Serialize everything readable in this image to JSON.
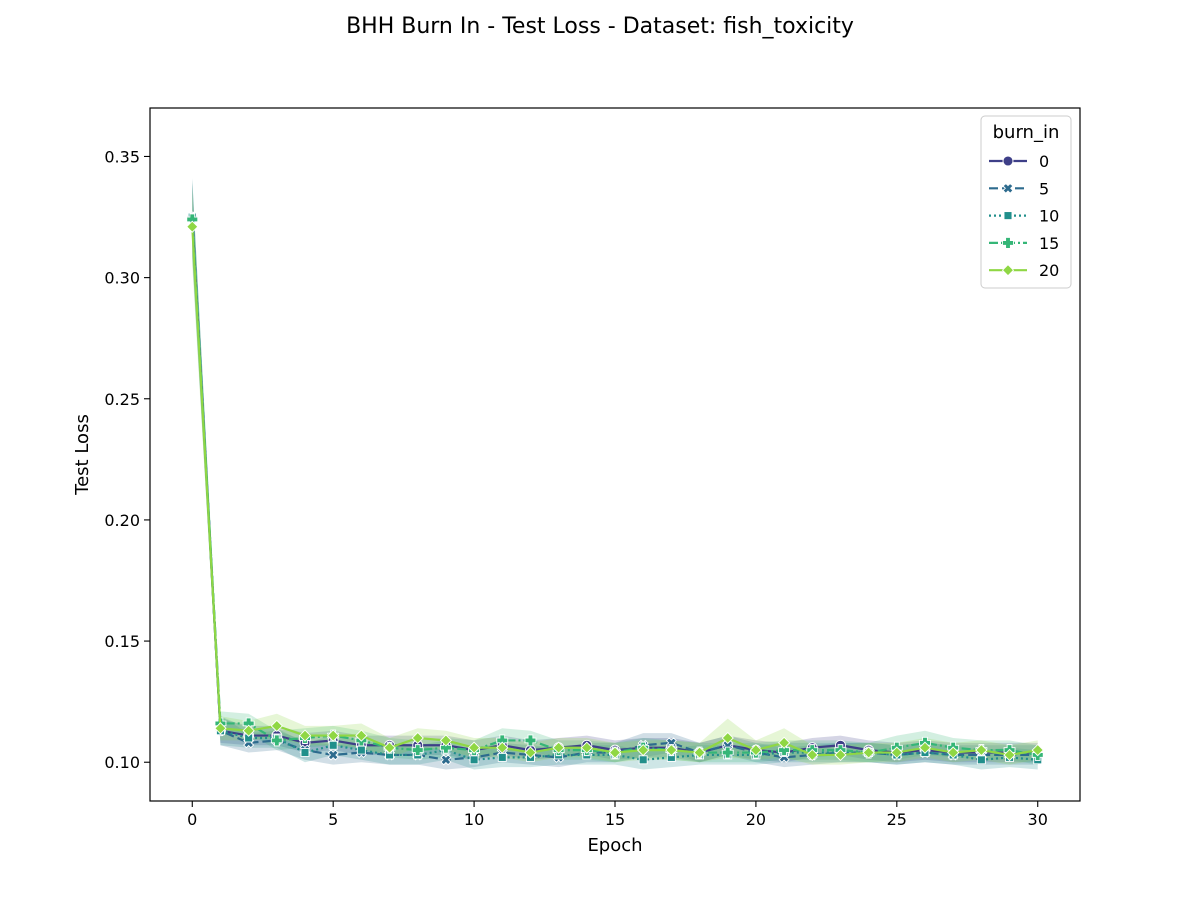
{
  "chart_data": {
    "type": "line",
    "title": "BHH Burn In - Test Loss - Dataset: fish_toxicity",
    "xlabel": "Epoch",
    "ylabel": "Test Loss",
    "xlim": [
      -1.5,
      31.5
    ],
    "ylim": [
      0.084,
      0.37
    ],
    "xticks": [
      0,
      5,
      10,
      15,
      20,
      25,
      30
    ],
    "xtick_labels": [
      "0",
      "5",
      "10",
      "15",
      "20",
      "25",
      "30"
    ],
    "yticks": [
      0.1,
      0.15,
      0.2,
      0.25,
      0.3,
      0.35
    ],
    "ytick_labels": [
      "0.10",
      "0.15",
      "0.20",
      "0.25",
      "0.30",
      "0.35"
    ],
    "grid": false,
    "legend": {
      "title": "burn_in",
      "placement": "top-right"
    },
    "x": [
      0,
      1,
      2,
      3,
      4,
      5,
      6,
      7,
      8,
      9,
      10,
      11,
      12,
      13,
      14,
      15,
      16,
      17,
      18,
      19,
      20,
      21,
      22,
      23,
      24,
      25,
      26,
      27,
      28,
      29,
      30
    ],
    "series": [
      {
        "name": "0",
        "color": "#3e3f88",
        "marker": "circle",
        "dash": "solid",
        "values": [
          0.325,
          0.113,
          0.111,
          0.111,
          0.108,
          0.109,
          0.107,
          0.107,
          0.107,
          0.107,
          0.105,
          0.107,
          0.105,
          0.106,
          0.107,
          0.105,
          0.106,
          0.106,
          0.104,
          0.107,
          0.105,
          0.104,
          0.106,
          0.107,
          0.105,
          0.104,
          0.105,
          0.104,
          0.104,
          0.104,
          0.104
        ],
        "band": [
          0.014,
          0.005,
          0.004,
          0.004,
          0.004,
          0.004,
          0.004,
          0.004,
          0.004,
          0.004,
          0.004,
          0.004,
          0.004,
          0.004,
          0.004,
          0.004,
          0.004,
          0.004,
          0.004,
          0.004,
          0.004,
          0.004,
          0.004,
          0.004,
          0.004,
          0.004,
          0.004,
          0.004,
          0.004,
          0.004,
          0.004
        ]
      },
      {
        "name": "5",
        "color": "#2d6b8e",
        "marker": "x",
        "dash": "dash",
        "values": [
          0.325,
          0.113,
          0.108,
          0.109,
          0.105,
          0.103,
          0.104,
          0.103,
          0.103,
          0.101,
          0.102,
          0.104,
          0.103,
          0.102,
          0.104,
          0.104,
          0.107,
          0.108,
          0.104,
          0.107,
          0.104,
          0.102,
          0.103,
          0.104,
          0.104,
          0.103,
          0.104,
          0.103,
          0.103,
          0.103,
          0.103
        ],
        "band": [
          0.016,
          0.006,
          0.004,
          0.004,
          0.004,
          0.004,
          0.004,
          0.004,
          0.004,
          0.004,
          0.004,
          0.004,
          0.004,
          0.004,
          0.004,
          0.004,
          0.005,
          0.004,
          0.004,
          0.004,
          0.004,
          0.004,
          0.004,
          0.004,
          0.004,
          0.004,
          0.004,
          0.004,
          0.004,
          0.004,
          0.004
        ]
      },
      {
        "name": "10",
        "color": "#218f8b",
        "marker": "square",
        "dash": "dot",
        "values": [
          0.325,
          0.113,
          0.11,
          0.11,
          0.104,
          0.107,
          0.105,
          0.103,
          0.103,
          0.105,
          0.101,
          0.102,
          0.102,
          0.103,
          0.103,
          0.103,
          0.101,
          0.102,
          0.103,
          0.103,
          0.103,
          0.104,
          0.104,
          0.104,
          0.104,
          0.103,
          0.104,
          0.103,
          0.101,
          0.102,
          0.101
        ],
        "band": [
          0.016,
          0.006,
          0.004,
          0.004,
          0.004,
          0.004,
          0.004,
          0.004,
          0.004,
          0.004,
          0.004,
          0.004,
          0.004,
          0.004,
          0.004,
          0.004,
          0.004,
          0.004,
          0.004,
          0.004,
          0.004,
          0.004,
          0.004,
          0.004,
          0.004,
          0.004,
          0.004,
          0.004,
          0.004,
          0.004,
          0.004
        ]
      },
      {
        "name": "15",
        "color": "#35b677",
        "marker": "plus",
        "dash": "dashdot",
        "values": [
          0.324,
          0.116,
          0.116,
          0.109,
          0.11,
          0.111,
          0.109,
          0.106,
          0.105,
          0.106,
          0.105,
          0.109,
          0.109,
          0.105,
          0.105,
          0.104,
          0.106,
          0.105,
          0.104,
          0.104,
          0.104,
          0.105,
          0.105,
          0.105,
          0.104,
          0.106,
          0.108,
          0.106,
          0.105,
          0.105,
          0.103
        ],
        "band": [
          0.016,
          0.005,
          0.004,
          0.004,
          0.004,
          0.004,
          0.004,
          0.004,
          0.004,
          0.004,
          0.004,
          0.005,
          0.004,
          0.004,
          0.004,
          0.004,
          0.004,
          0.004,
          0.004,
          0.004,
          0.004,
          0.004,
          0.004,
          0.004,
          0.004,
          0.005,
          0.005,
          0.004,
          0.004,
          0.004,
          0.004
        ]
      },
      {
        "name": "20",
        "color": "#8fd744",
        "marker": "diamond",
        "dash": "solid",
        "values": [
          0.321,
          0.114,
          0.113,
          0.115,
          0.111,
          0.111,
          0.111,
          0.106,
          0.11,
          0.109,
          0.106,
          0.106,
          0.104,
          0.106,
          0.106,
          0.104,
          0.105,
          0.105,
          0.104,
          0.11,
          0.105,
          0.108,
          0.103,
          0.103,
          0.104,
          0.104,
          0.106,
          0.104,
          0.105,
          0.103,
          0.105
        ],
        "band": [
          0.016,
          0.005,
          0.004,
          0.005,
          0.004,
          0.004,
          0.005,
          0.004,
          0.004,
          0.004,
          0.004,
          0.004,
          0.004,
          0.004,
          0.004,
          0.004,
          0.004,
          0.004,
          0.004,
          0.008,
          0.004,
          0.006,
          0.004,
          0.004,
          0.004,
          0.004,
          0.004,
          0.004,
          0.004,
          0.004,
          0.004
        ]
      }
    ]
  }
}
